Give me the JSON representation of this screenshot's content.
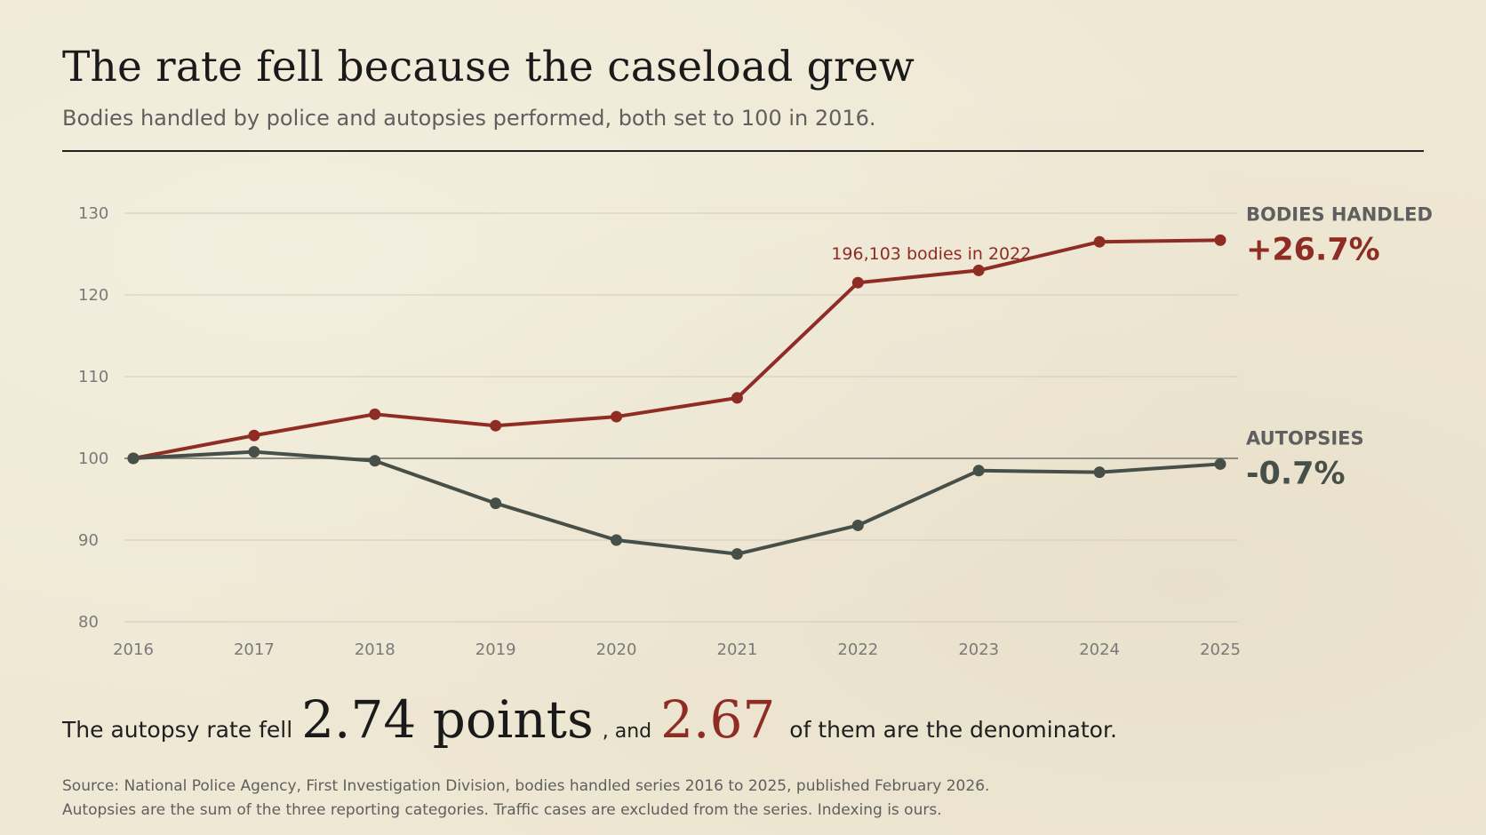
{
  "header": {
    "title": "The rate fell because the caseload grew",
    "subtitle": "Bodies handled by police and autopsies performed, both set to 100 in 2016."
  },
  "chart_data": {
    "type": "line",
    "x": [
      "2016",
      "2017",
      "2018",
      "2019",
      "2020",
      "2021",
      "2022",
      "2023",
      "2024",
      "2025"
    ],
    "ylim": [
      80,
      130
    ],
    "yticks": [
      80,
      90,
      100,
      110,
      120,
      130
    ],
    "grid": true,
    "reference_line": 100,
    "series": [
      {
        "name": "BODIES HANDLED",
        "change_label": "+26.7%",
        "color": "#8f2d25",
        "values": [
          100,
          102.8,
          105.4,
          104.0,
          105.1,
          107.4,
          121.5,
          123.0,
          126.5,
          126.7
        ]
      },
      {
        "name": "AUTOPSIES",
        "change_label": "-0.7%",
        "color": "#465049",
        "values": [
          100,
          100.8,
          99.7,
          94.5,
          90.0,
          88.3,
          91.8,
          98.5,
          98.3,
          99.3
        ]
      }
    ],
    "annotations": [
      {
        "text": "196,103 bodies in 2022",
        "x": "2022",
        "series": 0
      }
    ]
  },
  "summary": {
    "prefix": "The autopsy rate fell",
    "big_value": "2.74 points",
    "connector": ", and",
    "red_value": "2.67",
    "suffix": "of them are the denominator."
  },
  "source": {
    "line1": "Source: National Police Agency, First Investigation Division, bodies handled series 2016 to 2025, published February 2026.",
    "line2": "Autopsies are the sum of the three reporting categories. Traffic cases are excluded from the series. Indexing is ours."
  },
  "colors": {
    "background": "#efe8d4",
    "accent_red": "#8f2d25",
    "series_gray": "#465049",
    "axis_text": "#7a7a7a"
  }
}
